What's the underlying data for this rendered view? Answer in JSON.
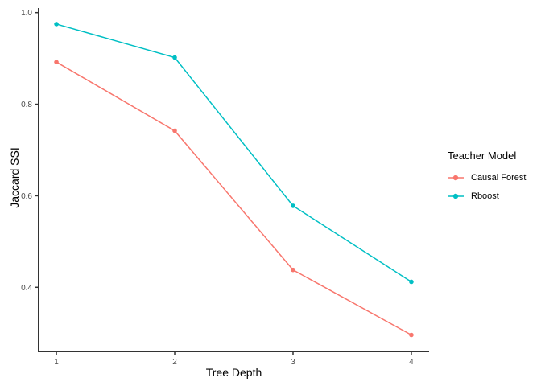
{
  "chart_data": {
    "type": "line",
    "title": "",
    "xlabel": "Tree Depth",
    "ylabel": "Jaccard SSI",
    "legend_title": "Teacher Model",
    "legend_position": "right",
    "grid": false,
    "background": "#ffffff",
    "x": [
      1,
      2,
      3,
      4
    ],
    "series": [
      {
        "name": "Causal Forest",
        "color": "#F8766D",
        "values": [
          0.892,
          0.742,
          0.438,
          0.296
        ]
      },
      {
        "name": "Rboost",
        "color": "#00BFC4",
        "values": [
          0.975,
          0.902,
          0.578,
          0.412
        ]
      }
    ],
    "xlim": [
      0.85,
      4.15
    ],
    "ylim": [
      0.26,
      1.01
    ],
    "x_ticks": [
      1,
      2,
      3,
      4
    ],
    "x_tick_labels": [
      "1",
      "2",
      "3",
      "4"
    ],
    "y_ticks": [
      0.4,
      0.6,
      0.8,
      1.0
    ],
    "y_tick_labels": [
      "0.4",
      "0.6",
      "0.8",
      "1.0"
    ],
    "axis_color": "#333333",
    "tick_label_color": "#4d4d4d",
    "point_radius": 2.8,
    "line_width": 1.5
  }
}
